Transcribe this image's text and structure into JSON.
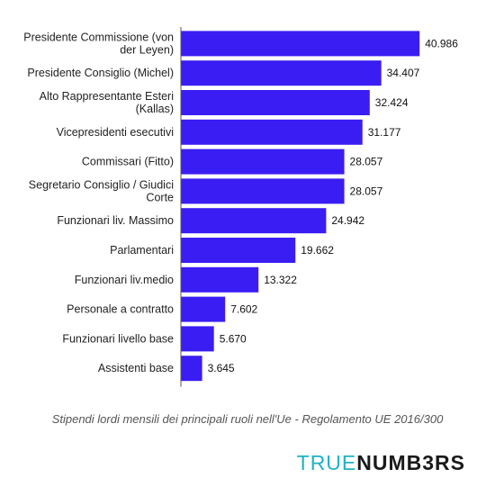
{
  "chart_data": {
    "type": "bar",
    "orientation": "horizontal",
    "categories": [
      "Presidente Commissione (von der Leyen)",
      "Presidente Consiglio (Michel)",
      "Alto Rappresentante Esteri (Kallas)",
      "Vicepresidenti esecutivi",
      "Commissari (Fitto)",
      "Segretario Consiglio / Giudici Corte",
      "Funzionari liv. Massimo",
      "Parlamentari",
      "Funzionari liv.medio",
      "Personale a contratto",
      "Funzionari livello base",
      "Assistenti base"
    ],
    "category_lines": [
      [
        "Presidente Commissione (von",
        "der Leyen)"
      ],
      [
        "Presidente Consiglio (Michel)"
      ],
      [
        "Alto Rappresentante Esteri",
        "(Kallas)"
      ],
      [
        "Vicepresidenti esecutivi"
      ],
      [
        "Commissari (Fitto)"
      ],
      [
        "Segretario Consiglio / Giudici",
        "Corte"
      ],
      [
        "Funzionari liv. Massimo"
      ],
      [
        "Parlamentari"
      ],
      [
        "Funzionari liv.medio"
      ],
      [
        "Personale a contratto"
      ],
      [
        "Funzionari livello base"
      ],
      [
        "Assistenti base"
      ]
    ],
    "values": [
      40986,
      34407,
      32424,
      31177,
      28057,
      28057,
      24942,
      19662,
      13322,
      7602,
      5670,
      3645
    ],
    "value_labels": [
      "40.986",
      "34.407",
      "32.424",
      "31.177",
      "28.057",
      "28.057",
      "24.942",
      "19.662",
      "13.322",
      "7.602",
      "5.670",
      "3.645"
    ],
    "bar_color": "#3a1df2",
    "xlim": [
      0,
      42500
    ],
    "title": "",
    "xlabel": "",
    "ylabel": "",
    "grid": false,
    "legend": "none"
  },
  "caption": "Stipendi lordi mensili dei principali ruoli nell'Ue - Regolamento UE 2016/300",
  "brand": {
    "part1": "TRUE",
    "part2": "NUMB3RS",
    "color1": "#1fb3c2",
    "color2": "#1a1a1a"
  }
}
